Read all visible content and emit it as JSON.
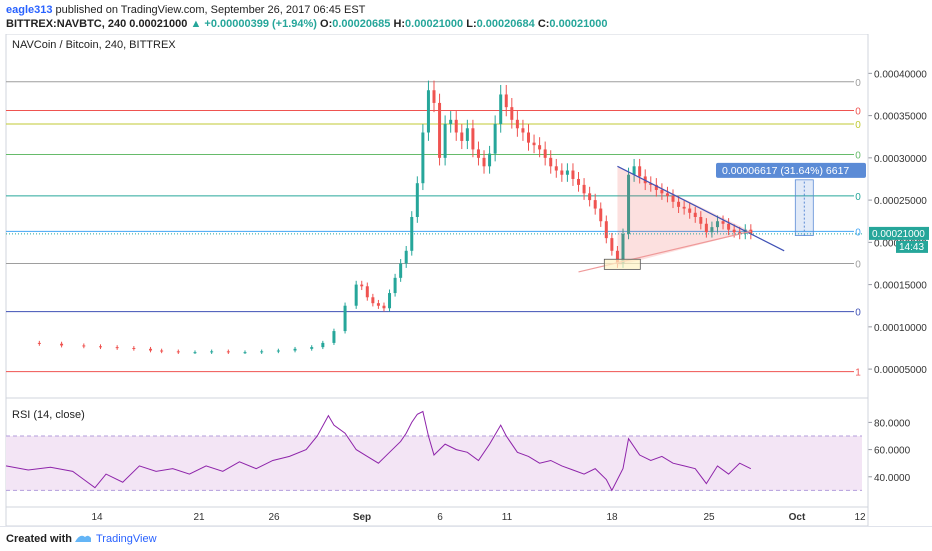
{
  "header": {
    "author": "eagle313",
    "published": "published on TradingView.com, September 26, 2017 06:45 EST",
    "symbol": "BITTREX:NAVBTC, 240",
    "last": "0.00021000",
    "change": "+0.00000399 (+1.94%)",
    "o_label": "O:",
    "o": "0.00020685",
    "h_label": "H:",
    "h": "0.00021000",
    "l_label": "L:",
    "l": "0.00020684",
    "c_label": "C:",
    "c": "0.00021000"
  },
  "footer": {
    "created": "Created with",
    "brand": "TradingView"
  },
  "colors": {
    "up": "#26a69a",
    "down": "#ef5350",
    "rsi": "#8e24aa",
    "rsi_band": "#f3e5f5",
    "trend": "#3f51b5",
    "measure": "#5b8bd6"
  },
  "chart_data": [
    {
      "type": "candlestick",
      "title": "NAVCoin / Bitcoin, 240, BITTREX",
      "ylim": [
        3e-05,
        0.00043
      ],
      "y_ticks": [
        "0.00040000",
        "0.00035000",
        "0.00030000",
        "0.00025000",
        "0.00020000",
        "0.00015000",
        "0.00010000",
        "0.00005000"
      ],
      "x_ticks": [
        "14",
        "21",
        "26",
        "Sep",
        "6",
        "11",
        "18",
        "25",
        "Oct",
        "12"
      ],
      "last_price_label": "0.00021000",
      "countdown": "14:43",
      "fib_levels": [
        {
          "value": 0.00039,
          "label": "0",
          "color": "#9e9e9e"
        },
        {
          "value": 0.000356,
          "label": "0",
          "color": "#ef5350"
        },
        {
          "value": 0.00034,
          "label": "0",
          "color": "#c0ca33"
        },
        {
          "value": 0.000304,
          "label": "0",
          "color": "#66bb6a"
        },
        {
          "value": 0.000255,
          "label": "0",
          "color": "#26a69a"
        },
        {
          "value": 0.000213,
          "label": "0",
          "color": "#42a5f5"
        },
        {
          "value": 0.000175,
          "label": "0",
          "color": "#9e9e9e"
        },
        {
          "value": 0.000118,
          "label": "0",
          "color": "#3f51b5"
        },
        {
          "value": 4.7e-05,
          "label": "1",
          "color": "#ef5350"
        }
      ],
      "measure_label": "0.00006617 (31.64%) 6617",
      "series": [
        {
          "name": "price",
          "points": [
            [
              0,
              8.1e-05
            ],
            [
              6,
              8e-05
            ],
            [
              10,
              7.8e-05
            ],
            [
              14,
              7.7e-05
            ],
            [
              17,
              7.6e-05
            ],
            [
              20,
              7.5e-05
            ],
            [
              23,
              7.4e-05
            ],
            [
              26,
              7.2e-05
            ],
            [
              28,
              7.1e-05
            ],
            [
              31,
              7e-05
            ],
            [
              34,
              7e-05
            ],
            [
              37,
              7.1e-05
            ],
            [
              40,
              7e-05
            ],
            [
              43,
              7e-05
            ],
            [
              46,
              7.1e-05
            ],
            [
              49,
              7.2e-05
            ],
            [
              52,
              7.4e-05
            ],
            [
              55,
              7.6e-05
            ],
            [
              57,
              8.1e-05
            ],
            [
              59,
              9.5e-05
            ],
            [
              61,
              0.000125
            ],
            [
              63,
              0.00015
            ],
            [
              64,
              0.000148
            ],
            [
              65,
              0.000135
            ],
            [
              66,
              0.000128
            ],
            [
              67,
              0.000125
            ],
            [
              68,
              0.000122
            ],
            [
              69,
              0.00014
            ],
            [
              70,
              0.000158
            ],
            [
              71,
              0.000175
            ],
            [
              72,
              0.00019
            ],
            [
              73,
              0.00023
            ],
            [
              74,
              0.00027
            ],
            [
              75,
              0.00033
            ],
            [
              76,
              0.00038
            ],
            [
              77,
              0.000365
            ],
            [
              78,
              0.0003
            ],
            [
              79,
              0.00034
            ],
            [
              80,
              0.000345
            ],
            [
              81,
              0.00033
            ],
            [
              82,
              0.00032
            ],
            [
              83,
              0.000335
            ],
            [
              84,
              0.00031
            ],
            [
              85,
              0.0003
            ],
            [
              86,
              0.00029
            ],
            [
              87,
              0.000305
            ],
            [
              88,
              0.00034
            ],
            [
              89,
              0.000375
            ],
            [
              90,
              0.00036
            ],
            [
              91,
              0.000345
            ],
            [
              92,
              0.000335
            ],
            [
              93,
              0.00033
            ],
            [
              94,
              0.000318
            ],
            [
              95,
              0.000315
            ],
            [
              96,
              0.00031
            ],
            [
              97,
              0.0003
            ],
            [
              98,
              0.00029
            ],
            [
              99,
              0.000285
            ],
            [
              100,
              0.00028
            ],
            [
              101,
              0.000285
            ],
            [
              102,
              0.000275
            ],
            [
              103,
              0.000268
            ],
            [
              104,
              0.000258
            ],
            [
              105,
              0.00025
            ],
            [
              106,
              0.00024
            ],
            [
              107,
              0.000225
            ],
            [
              108,
              0.000205
            ],
            [
              109,
              0.00019
            ],
            [
              110,
              0.000175
            ],
            [
              111,
              0.00021
            ],
            [
              112,
              0.00028
            ],
            [
              113,
              0.00029
            ],
            [
              114,
              0.000278
            ],
            [
              115,
              0.00027
            ],
            [
              116,
              0.000268
            ],
            [
              117,
              0.000262
            ],
            [
              118,
              0.000258
            ],
            [
              119,
              0.000255
            ],
            [
              120,
              0.000248
            ],
            [
              121,
              0.000242
            ],
            [
              122,
              0.00024
            ],
            [
              123,
              0.000235
            ],
            [
              124,
              0.00023
            ],
            [
              125,
              0.000222
            ],
            [
              126,
              0.000212
            ],
            [
              127,
              0.000218
            ],
            [
              128,
              0.000225
            ],
            [
              129,
              0.000222
            ],
            [
              130,
              0.000215
            ],
            [
              131,
              0.000212
            ],
            [
              132,
              0.00021
            ],
            [
              133,
              0.000215
            ],
            [
              134,
              0.00021
            ]
          ]
        }
      ]
    },
    {
      "type": "line",
      "title": "RSI (14, close)",
      "ylim": [
        20,
        95
      ],
      "y_ticks": [
        "80.0000",
        "60.0000",
        "40.0000"
      ],
      "band": [
        30,
        70
      ],
      "series": [
        {
          "name": "RSI",
          "points": [
            [
              0,
              48
            ],
            [
              4,
              45
            ],
            [
              8,
              47
            ],
            [
              12,
              44
            ],
            [
              14,
              38
            ],
            [
              16,
              32
            ],
            [
              18,
              42
            ],
            [
              21,
              36
            ],
            [
              24,
              48
            ],
            [
              27,
              44
            ],
            [
              30,
              46
            ],
            [
              33,
              42
            ],
            [
              36,
              48
            ],
            [
              39,
              44
            ],
            [
              42,
              51
            ],
            [
              45,
              46
            ],
            [
              48,
              52
            ],
            [
              51,
              55
            ],
            [
              54,
              60
            ],
            [
              56,
              70
            ],
            [
              58,
              85
            ],
            [
              59,
              78
            ],
            [
              61,
              72
            ],
            [
              63,
              60
            ],
            [
              65,
              55
            ],
            [
              67,
              50
            ],
            [
              69,
              58
            ],
            [
              71,
              66
            ],
            [
              72,
              72
            ],
            [
              73,
              80
            ],
            [
              74,
              86
            ],
            [
              75,
              88
            ],
            [
              76,
              70
            ],
            [
              77,
              56
            ],
            [
              79,
              64
            ],
            [
              81,
              60
            ],
            [
              83,
              58
            ],
            [
              85,
              52
            ],
            [
              87,
              64
            ],
            [
              89,
              78
            ],
            [
              90,
              70
            ],
            [
              92,
              58
            ],
            [
              94,
              55
            ],
            [
              96,
              50
            ],
            [
              98,
              52
            ],
            [
              100,
              48
            ],
            [
              102,
              45
            ],
            [
              104,
              42
            ],
            [
              106,
              46
            ],
            [
              108,
              38
            ],
            [
              109,
              30
            ],
            [
              111,
              46
            ],
            [
              112,
              68
            ],
            [
              114,
              56
            ],
            [
              116,
              52
            ],
            [
              118,
              55
            ],
            [
              120,
              50
            ],
            [
              122,
              48
            ],
            [
              124,
              46
            ],
            [
              126,
              35
            ],
            [
              128,
              48
            ],
            [
              130,
              42
            ],
            [
              132,
              50
            ],
            [
              134,
              46
            ]
          ]
        }
      ]
    }
  ]
}
